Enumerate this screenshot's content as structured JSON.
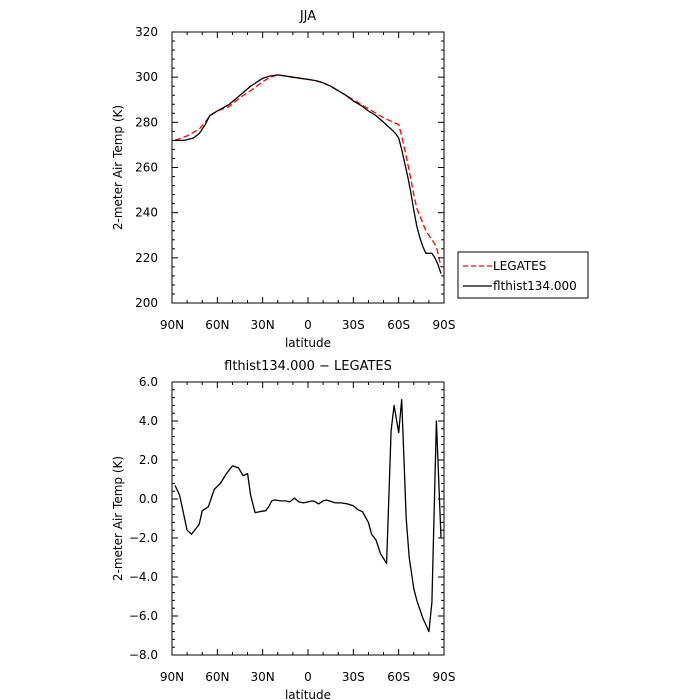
{
  "chart_data": [
    {
      "type": "line",
      "title": "JJA",
      "xlabel": "latitude",
      "ylabel": "2-meter Air Temp (K)",
      "xlim": [
        90,
        -90
      ],
      "ylim": [
        200,
        320
      ],
      "x_ticks": [
        90,
        60,
        30,
        0,
        -30,
        -60,
        -90
      ],
      "x_tick_labels": [
        "90N",
        "60N",
        "30N",
        "0",
        "30S",
        "60S",
        "90S"
      ],
      "y_ticks": [
        200,
        220,
        240,
        260,
        280,
        300,
        320
      ],
      "y_tick_labels": [
        "200",
        "220",
        "240",
        "260",
        "280",
        "300",
        "320"
      ],
      "legend_position": "right",
      "series": [
        {
          "name": "LEGATES",
          "color": "#ff0000",
          "dash": "dashed",
          "x": [
            88,
            80,
            72,
            68,
            65,
            60,
            52,
            45,
            38,
            30,
            25,
            20,
            15,
            10,
            5,
            0,
            -5,
            -10,
            -15,
            -20,
            -25,
            -30,
            -35,
            -40,
            -45,
            -50,
            -55,
            -60,
            -62,
            -65,
            -68,
            -70,
            -72,
            -75,
            -78,
            -82,
            -85,
            -88
          ],
          "y": [
            272,
            274,
            277,
            280,
            283,
            285,
            287,
            291,
            294,
            298,
            300,
            301,
            300.5,
            300,
            299.5,
            299,
            298.5,
            297.5,
            296,
            294,
            292,
            290,
            288,
            286,
            284,
            282,
            280.5,
            279,
            274,
            265,
            255,
            248,
            242,
            237,
            232,
            228,
            225,
            216
          ]
        },
        {
          "name": "flthist134.000",
          "color": "#000000",
          "dash": "solid",
          "x": [
            88,
            82,
            76,
            72,
            68,
            65,
            60,
            52,
            45,
            38,
            30,
            25,
            20,
            15,
            10,
            5,
            0,
            -5,
            -10,
            -15,
            -20,
            -25,
            -30,
            -35,
            -40,
            -45,
            -50,
            -55,
            -58,
            -60,
            -62,
            -64,
            -66,
            -68,
            -70,
            -72,
            -74,
            -76,
            -78,
            -80,
            -82,
            -84,
            -86,
            -88
          ],
          "y": [
            272,
            272,
            273,
            275,
            279,
            283,
            285,
            288,
            292,
            296,
            299.5,
            300.5,
            301,
            300.5,
            300,
            299.5,
            299,
            298.5,
            297.5,
            296,
            294,
            292,
            289.5,
            287.5,
            285,
            283,
            280,
            277,
            275,
            273,
            268,
            262,
            256,
            249,
            241,
            234,
            229,
            225,
            222,
            222,
            222,
            220,
            217,
            213
          ]
        }
      ]
    },
    {
      "type": "line",
      "title": "flthist134.000 − LEGATES",
      "xlabel": "latitude",
      "ylabel": "2-meter Air Temp (K)",
      "xlim": [
        90,
        -90
      ],
      "ylim": [
        -8,
        6
      ],
      "x_ticks": [
        90,
        60,
        30,
        0,
        -30,
        -60,
        -90
      ],
      "x_tick_labels": [
        "90N",
        "60N",
        "30N",
        "0",
        "30S",
        "60S",
        "90S"
      ],
      "y_ticks": [
        -8,
        -6,
        -4,
        -2,
        0,
        2,
        4,
        6
      ],
      "y_tick_labels": [
        "−8.0",
        "−6.0",
        "−4.0",
        "−2.0",
        "0.0",
        "2.0",
        "4.0",
        "6.0"
      ],
      "series": [
        {
          "color": "#000000",
          "dash": "solid",
          "x": [
            88,
            85,
            80,
            77,
            72,
            70,
            66,
            62,
            58,
            54,
            50,
            46,
            43,
            40,
            38,
            35,
            32,
            28,
            26,
            24,
            22,
            18,
            15,
            12,
            9,
            6,
            3,
            0,
            -3,
            -5,
            -7,
            -10,
            -12,
            -14,
            -18,
            -22,
            -26,
            -30,
            -33,
            -36,
            -40,
            -42,
            -45,
            -48,
            -52,
            -55,
            -57,
            -60,
            -62,
            -65,
            -67,
            -70,
            -72,
            -76,
            -80,
            -82,
            -85,
            -88
          ],
          "y": [
            0.7,
            0.2,
            -1.6,
            -1.8,
            -1.3,
            -0.6,
            -0.4,
            0.5,
            0.8,
            1.3,
            1.7,
            1.6,
            1.2,
            1.3,
            0.2,
            -0.7,
            -0.65,
            -0.6,
            -0.4,
            -0.1,
            -0.05,
            -0.1,
            -0.1,
            -0.15,
            0.05,
            -0.15,
            -0.2,
            -0.15,
            -0.1,
            -0.15,
            -0.25,
            -0.1,
            -0.05,
            -0.1,
            -0.2,
            -0.2,
            -0.25,
            -0.35,
            -0.55,
            -0.65,
            -1.2,
            -1.8,
            -2.1,
            -2.8,
            -3.3,
            3.5,
            4.8,
            3.4,
            5.1,
            -1.0,
            -3.0,
            -4.6,
            -5.2,
            -6.1,
            -6.8,
            -5.3,
            4.0,
            -2.0
          ]
        }
      ]
    }
  ]
}
